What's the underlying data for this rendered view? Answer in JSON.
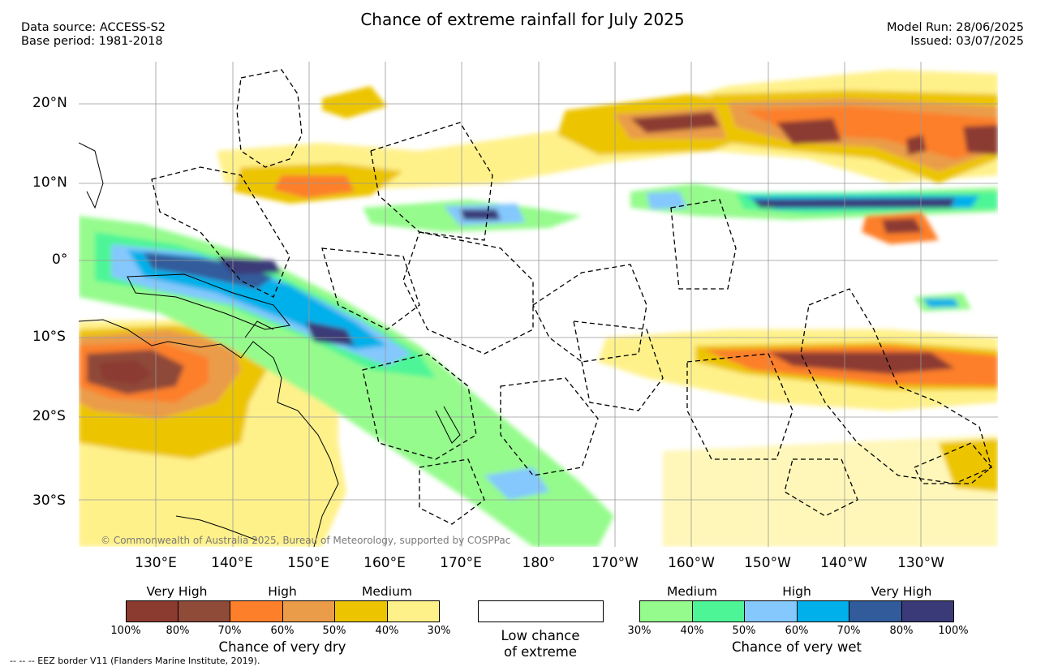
{
  "header": {
    "title": "Chance of extreme rainfall for July 2025",
    "data_source": "Data source: ACCESS-S2",
    "base_period": "Base period: 1981-2018",
    "model_run": "Model Run: 28/06/2025",
    "issued": "Issued: 03/07/2025"
  },
  "map": {
    "lat_labels": [
      "20°N",
      "10°N",
      "0°",
      "10°S",
      "20°S",
      "30°S"
    ],
    "lon_labels": [
      "130°E",
      "140°E",
      "150°E",
      "160°E",
      "170°E",
      "180°",
      "170°W",
      "160°W",
      "150°W",
      "140°W",
      "130°W"
    ],
    "credit": "© Commonwealth of Australia 2025, Bureau of Meteorology, supported by COSPPac"
  },
  "legend": {
    "dry": {
      "categories": [
        "Very High",
        "High",
        "Medium"
      ],
      "ticks": [
        "100%",
        "80%",
        "70%",
        "60%",
        "50%",
        "40%",
        "30%"
      ],
      "caption": "Chance of very dry",
      "colors": [
        "#8c3b30",
        "#8f4a38",
        "#fd7f2a",
        "#ea9c48",
        "#ecc500",
        "#fff18a"
      ]
    },
    "low": {
      "line1": "Low chance",
      "line2": "of extreme",
      "color": "#ffffff"
    },
    "wet": {
      "categories": [
        "Medium",
        "High",
        "Very High"
      ],
      "ticks": [
        "30%",
        "40%",
        "50%",
        "60%",
        "70%",
        "80%",
        "100%"
      ],
      "caption": "Chance of very wet",
      "colors": [
        "#95fb8c",
        "#4ef597",
        "#84c8fd",
        "#00b0ea",
        "#315b9b",
        "#3b3a78"
      ]
    },
    "eez_note": "-- -- -- EEZ border V11 (Flanders Marine Institute, 2019)."
  }
}
